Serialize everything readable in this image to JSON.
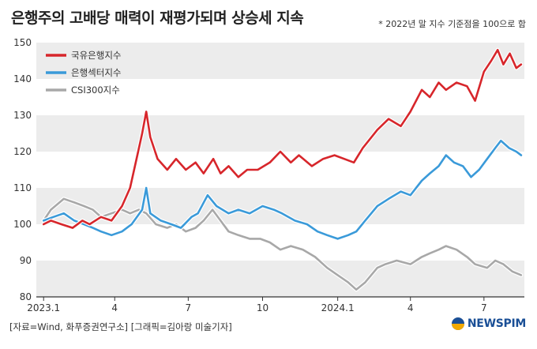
{
  "title": "은행주의 고배당 매력이 재평가되며 상승세 지속",
  "note": "* 2022년 말 지수 기준점을 100으로 함",
  "source": "[자료=Wind, 화푸증권연구소] [그래픽=김아랑 미술기자]",
  "logo": "NEWSPIM",
  "colors": {
    "bank_index": "#d7262b",
    "sector_index": "#3a9ad9",
    "csi300": "#a8a8a8",
    "band": "#ececec",
    "axis": "#333333"
  },
  "chart_data": {
    "type": "line",
    "title": "",
    "xlabel": "",
    "ylabel": "",
    "ylim": [
      80,
      150
    ],
    "yticks": [
      80,
      90,
      100,
      110,
      120,
      130,
      140,
      150
    ],
    "xlim": [
      "2022-12-25",
      "2024-08-20"
    ],
    "xticks": [
      {
        "date": "2023-01-03",
        "label": "2023.1"
      },
      {
        "date": "2023-04-01",
        "label": "4"
      },
      {
        "date": "2023-07-01",
        "label": "7"
      },
      {
        "date": "2023-10-01",
        "label": "10"
      },
      {
        "date": "2024-01-02",
        "label": "2024.1"
      },
      {
        "date": "2024-04-01",
        "label": "4"
      },
      {
        "date": "2024-07-01",
        "label": "7"
      }
    ],
    "grid": "alternating horizontal bands",
    "legend_position": "top-left",
    "series": [
      {
        "name": "국유은행지수",
        "color": "#d7262b",
        "points": [
          [
            "2023-01-03",
            100
          ],
          [
            "2023-01-12",
            101
          ],
          [
            "2023-01-25",
            100
          ],
          [
            "2023-02-08",
            99
          ],
          [
            "2023-02-20",
            101
          ],
          [
            "2023-03-01",
            100
          ],
          [
            "2023-03-15",
            102
          ],
          [
            "2023-03-28",
            101
          ],
          [
            "2023-04-10",
            105
          ],
          [
            "2023-04-20",
            110
          ],
          [
            "2023-04-28",
            118
          ],
          [
            "2023-05-05",
            125
          ],
          [
            "2023-05-10",
            131
          ],
          [
            "2023-05-15",
            124
          ],
          [
            "2023-05-24",
            118
          ],
          [
            "2023-06-05",
            115
          ],
          [
            "2023-06-16",
            118
          ],
          [
            "2023-06-28",
            115
          ],
          [
            "2023-07-10",
            117
          ],
          [
            "2023-07-20",
            114
          ],
          [
            "2023-08-01",
            118
          ],
          [
            "2023-08-10",
            114
          ],
          [
            "2023-08-20",
            116
          ],
          [
            "2023-09-01",
            113
          ],
          [
            "2023-09-12",
            115
          ],
          [
            "2023-09-25",
            115
          ],
          [
            "2023-10-10",
            117
          ],
          [
            "2023-10-23",
            120
          ],
          [
            "2023-11-05",
            117
          ],
          [
            "2023-11-15",
            119
          ],
          [
            "2023-12-01",
            116
          ],
          [
            "2023-12-15",
            118
          ],
          [
            "2023-12-29",
            119
          ],
          [
            "2024-01-10",
            118
          ],
          [
            "2024-01-22",
            117
          ],
          [
            "2024-02-02",
            121
          ],
          [
            "2024-02-20",
            126
          ],
          [
            "2024-03-05",
            129
          ],
          [
            "2024-03-20",
            127
          ],
          [
            "2024-04-01",
            131
          ],
          [
            "2024-04-15",
            137
          ],
          [
            "2024-04-25",
            135
          ],
          [
            "2024-05-06",
            139
          ],
          [
            "2024-05-15",
            137
          ],
          [
            "2024-05-28",
            139
          ],
          [
            "2024-06-10",
            138
          ],
          [
            "2024-06-20",
            134
          ],
          [
            "2024-07-01",
            142
          ],
          [
            "2024-07-10",
            145
          ],
          [
            "2024-07-18",
            148
          ],
          [
            "2024-07-25",
            144
          ],
          [
            "2024-08-02",
            147
          ],
          [
            "2024-08-10",
            143
          ],
          [
            "2024-08-16",
            144
          ]
        ]
      },
      {
        "name": "은행섹터지수",
        "color": "#3a9ad9",
        "points": [
          [
            "2023-01-03",
            101
          ],
          [
            "2023-01-15",
            102
          ],
          [
            "2023-01-28",
            103
          ],
          [
            "2023-02-10",
            101
          ],
          [
            "2023-02-22",
            100
          ],
          [
            "2023-03-05",
            99
          ],
          [
            "2023-03-15",
            98
          ],
          [
            "2023-03-28",
            97
          ],
          [
            "2023-04-10",
            98
          ],
          [
            "2023-04-22",
            100
          ],
          [
            "2023-05-05",
            104
          ],
          [
            "2023-05-10",
            110
          ],
          [
            "2023-05-15",
            103
          ],
          [
            "2023-05-28",
            101
          ],
          [
            "2023-06-10",
            100
          ],
          [
            "2023-06-22",
            99
          ],
          [
            "2023-07-05",
            102
          ],
          [
            "2023-07-13",
            103
          ],
          [
            "2023-07-25",
            108
          ],
          [
            "2023-08-05",
            105
          ],
          [
            "2023-08-20",
            103
          ],
          [
            "2023-09-01",
            104
          ],
          [
            "2023-09-15",
            103
          ],
          [
            "2023-10-01",
            105
          ],
          [
            "2023-10-15",
            104
          ],
          [
            "2023-10-25",
            103
          ],
          [
            "2023-11-10",
            101
          ],
          [
            "2023-11-25",
            100
          ],
          [
            "2023-12-08",
            98
          ],
          [
            "2023-12-20",
            97
          ],
          [
            "2024-01-02",
            96
          ],
          [
            "2024-01-15",
            97
          ],
          [
            "2024-01-25",
            98
          ],
          [
            "2024-02-05",
            101
          ],
          [
            "2024-02-20",
            105
          ],
          [
            "2024-03-05",
            107
          ],
          [
            "2024-03-20",
            109
          ],
          [
            "2024-04-01",
            108
          ],
          [
            "2024-04-15",
            112
          ],
          [
            "2024-04-25",
            114
          ],
          [
            "2024-05-06",
            116
          ],
          [
            "2024-05-15",
            119
          ],
          [
            "2024-05-25",
            117
          ],
          [
            "2024-06-05",
            116
          ],
          [
            "2024-06-15",
            113
          ],
          [
            "2024-06-25",
            115
          ],
          [
            "2024-07-05",
            118
          ],
          [
            "2024-07-15",
            121
          ],
          [
            "2024-07-22",
            123
          ],
          [
            "2024-08-01",
            121
          ],
          [
            "2024-08-10",
            120
          ],
          [
            "2024-08-16",
            119
          ]
        ]
      },
      {
        "name": "CSI300지수",
        "color": "#a8a8a8",
        "points": [
          [
            "2023-01-03",
            101
          ],
          [
            "2023-01-12",
            104
          ],
          [
            "2023-01-28",
            107
          ],
          [
            "2023-02-10",
            106
          ],
          [
            "2023-02-22",
            105
          ],
          [
            "2023-03-05",
            104
          ],
          [
            "2023-03-15",
            102
          ],
          [
            "2023-03-28",
            103
          ],
          [
            "2023-04-10",
            104
          ],
          [
            "2023-04-20",
            103
          ],
          [
            "2023-05-01",
            104
          ],
          [
            "2023-05-10",
            103
          ],
          [
            "2023-05-22",
            100
          ],
          [
            "2023-06-05",
            99
          ],
          [
            "2023-06-16",
            100
          ],
          [
            "2023-06-28",
            98
          ],
          [
            "2023-07-10",
            99
          ],
          [
            "2023-07-20",
            101
          ],
          [
            "2023-07-31",
            104
          ],
          [
            "2023-08-10",
            101
          ],
          [
            "2023-08-20",
            98
          ],
          [
            "2023-09-01",
            97
          ],
          [
            "2023-09-15",
            96
          ],
          [
            "2023-09-28",
            96
          ],
          [
            "2023-10-10",
            95
          ],
          [
            "2023-10-23",
            93
          ],
          [
            "2023-11-05",
            94
          ],
          [
            "2023-11-20",
            93
          ],
          [
            "2023-12-05",
            91
          ],
          [
            "2023-12-20",
            88
          ],
          [
            "2024-01-02",
            86
          ],
          [
            "2024-01-15",
            84
          ],
          [
            "2024-01-25",
            82
          ],
          [
            "2024-02-05",
            84
          ],
          [
            "2024-02-20",
            88
          ],
          [
            "2024-03-01",
            89
          ],
          [
            "2024-03-15",
            90
          ],
          [
            "2024-04-01",
            89
          ],
          [
            "2024-04-15",
            91
          ],
          [
            "2024-04-25",
            92
          ],
          [
            "2024-05-06",
            93
          ],
          [
            "2024-05-15",
            94
          ],
          [
            "2024-05-28",
            93
          ],
          [
            "2024-06-10",
            91
          ],
          [
            "2024-06-20",
            89
          ],
          [
            "2024-07-05",
            88
          ],
          [
            "2024-07-15",
            90
          ],
          [
            "2024-07-25",
            89
          ],
          [
            "2024-08-05",
            87
          ],
          [
            "2024-08-16",
            86
          ]
        ]
      }
    ]
  }
}
